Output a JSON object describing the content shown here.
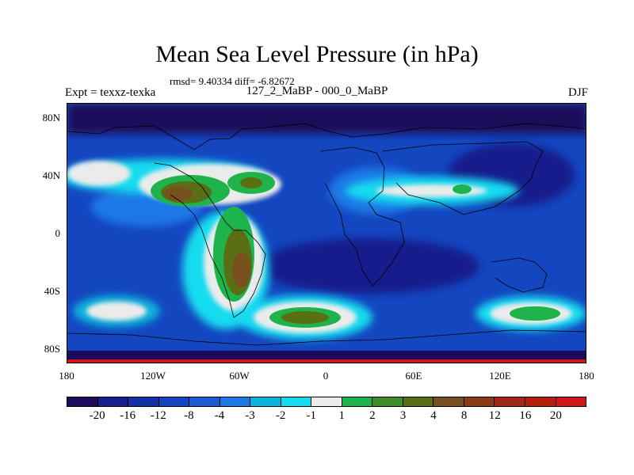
{
  "title": "Mean Sea Level Pressure (in hPa)",
  "stats": "rmsd= 9.40334 diff= -6.82672",
  "expt_label": "Expt = texxz-texka",
  "experiment": "127_2_MaBP - 000_0_MaBP",
  "season": "DJF",
  "lat_ticks": [
    "80N",
    "40N",
    "0",
    "40S",
    "80S"
  ],
  "lon_ticks": [
    "180",
    "120W",
    "60W",
    "0",
    "60E",
    "120E",
    "180"
  ],
  "colorbar": {
    "colors": [
      "#1e0a5a",
      "#141e8c",
      "#1432a8",
      "#1446c0",
      "#1e5ad2",
      "#1e78e6",
      "#0ab4dc",
      "#14dcf0",
      "#ebebeb",
      "#1eb44b",
      "#3c8c28",
      "#5a6e14",
      "#78501e",
      "#8c3c14",
      "#a02814",
      "#b41e0a",
      "#d21414"
    ],
    "labels": [
      "-20",
      "-16",
      "-12",
      "-8",
      "-4",
      "-3",
      "-2",
      "-1",
      "1",
      "2",
      "3",
      "4",
      "8",
      "12",
      "16",
      "20"
    ]
  },
  "map_colors": {
    "ocean_base": "#1446c0",
    "deep": "#141e8c",
    "polar": "#1e0a5a",
    "mid": "#1e78e6",
    "cyan": "#14dcf0",
    "teal": "#0ab4dc",
    "neutral": "#ebebeb",
    "green": "#1eb44b",
    "olive": "#5a6e14",
    "brown": "#78501e",
    "red_band": "#d21414"
  }
}
